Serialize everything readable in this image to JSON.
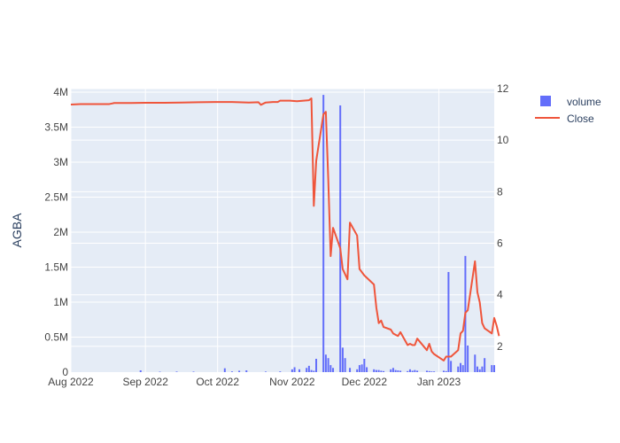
{
  "chart_data": {
    "type": "bar+line",
    "ylabel": "AGBA",
    "x_ticks": [
      "Aug 2022",
      "Sep 2022",
      "Oct 2022",
      "Nov 2022",
      "Dec 2022",
      "Jan 2023"
    ],
    "x_range": [
      "2022-08-01",
      "2023-01-24"
    ],
    "y_left": {
      "range": [
        0,
        4050000
      ],
      "ticks": [
        0,
        500000,
        1000000,
        1500000,
        2000000,
        2500000,
        3000000,
        3500000,
        4000000
      ],
      "tick_labels": [
        "0",
        "0.5M",
        "1M",
        "1.5M",
        "2M",
        "2.5M",
        "3M",
        "3.5M",
        "4M"
      ]
    },
    "y_right": {
      "range": [
        1.0,
        12.0
      ],
      "ticks": [
        2,
        4,
        6,
        8,
        10,
        12
      ],
      "tick_labels": [
        "2",
        "4",
        "6",
        "8",
        "10",
        "12"
      ]
    },
    "grid": true,
    "legend": "top-right",
    "colors": {
      "plot_bg": "#e5ecf6",
      "grid": "#ffffff",
      "bar": "#636efa",
      "line": "#ef553b",
      "text": "#2a3f5f",
      "axis_text": "#444444"
    },
    "series": [
      {
        "name": "volume",
        "type": "bar",
        "axis": "left",
        "points": [
          [
            "2022-08-30",
            25000
          ],
          [
            "2022-09-07",
            6000
          ],
          [
            "2022-09-14",
            8000
          ],
          [
            "2022-09-21",
            7000
          ],
          [
            "2022-10-04",
            55000
          ],
          [
            "2022-10-07",
            10000
          ],
          [
            "2022-10-10",
            20000
          ],
          [
            "2022-10-13",
            25000
          ],
          [
            "2022-10-21",
            8000
          ],
          [
            "2022-10-27",
            10000
          ],
          [
            "2022-11-01",
            40000
          ],
          [
            "2022-11-02",
            70000
          ],
          [
            "2022-11-04",
            40000
          ],
          [
            "2022-11-07",
            60000
          ],
          [
            "2022-11-08",
            90000
          ],
          [
            "2022-11-09",
            30000
          ],
          [
            "2022-11-10",
            20000
          ],
          [
            "2022-11-11",
            190000
          ],
          [
            "2022-11-14",
            3960000
          ],
          [
            "2022-11-15",
            250000
          ],
          [
            "2022-11-16",
            200000
          ],
          [
            "2022-11-17",
            100000
          ],
          [
            "2022-11-18",
            60000
          ],
          [
            "2022-11-21",
            3810000
          ],
          [
            "2022-11-22",
            350000
          ],
          [
            "2022-11-23",
            200000
          ],
          [
            "2022-11-25",
            60000
          ],
          [
            "2022-11-28",
            40000
          ],
          [
            "2022-11-29",
            100000
          ],
          [
            "2022-11-30",
            110000
          ],
          [
            "2022-12-01",
            190000
          ],
          [
            "2022-12-02",
            70000
          ],
          [
            "2022-12-05",
            40000
          ],
          [
            "2022-12-06",
            30000
          ],
          [
            "2022-12-07",
            30000
          ],
          [
            "2022-12-08",
            20000
          ],
          [
            "2022-12-09",
            15000
          ],
          [
            "2022-12-12",
            40000
          ],
          [
            "2022-12-13",
            60000
          ],
          [
            "2022-12-14",
            30000
          ],
          [
            "2022-12-15",
            25000
          ],
          [
            "2022-12-16",
            20000
          ],
          [
            "2022-12-19",
            15000
          ],
          [
            "2022-12-20",
            40000
          ],
          [
            "2022-12-21",
            20000
          ],
          [
            "2022-12-22",
            30000
          ],
          [
            "2022-12-23",
            20000
          ],
          [
            "2022-12-27",
            20000
          ],
          [
            "2022-12-28",
            15000
          ],
          [
            "2022-12-29",
            10000
          ],
          [
            "2022-12-30",
            10000
          ],
          [
            "2023-01-03",
            20000
          ],
          [
            "2023-01-04",
            15000
          ],
          [
            "2023-01-05",
            1430000
          ],
          [
            "2023-01-06",
            160000
          ],
          [
            "2023-01-09",
            80000
          ],
          [
            "2023-01-10",
            130000
          ],
          [
            "2023-01-11",
            100000
          ],
          [
            "2023-01-12",
            1660000
          ],
          [
            "2023-01-13",
            380000
          ],
          [
            "2023-01-16",
            250000
          ],
          [
            "2023-01-17",
            80000
          ],
          [
            "2023-01-18",
            40000
          ],
          [
            "2023-01-19",
            80000
          ],
          [
            "2023-01-20",
            200000
          ],
          [
            "2023-01-23",
            100000
          ],
          [
            "2023-01-24",
            100000
          ]
        ]
      },
      {
        "name": "Close",
        "type": "line",
        "axis": "right",
        "points": [
          [
            "2022-08-01",
            11.38
          ],
          [
            "2022-08-05",
            11.4
          ],
          [
            "2022-08-12",
            11.4
          ],
          [
            "2022-08-17",
            11.4
          ],
          [
            "2022-08-19",
            11.44
          ],
          [
            "2022-08-26",
            11.44
          ],
          [
            "2022-09-01",
            11.45
          ],
          [
            "2022-09-09",
            11.45
          ],
          [
            "2022-09-16",
            11.46
          ],
          [
            "2022-09-23",
            11.47
          ],
          [
            "2022-09-30",
            11.48
          ],
          [
            "2022-10-07",
            11.48
          ],
          [
            "2022-10-14",
            11.46
          ],
          [
            "2022-10-18",
            11.47
          ],
          [
            "2022-10-19",
            11.37
          ],
          [
            "2022-10-21",
            11.46
          ],
          [
            "2022-10-24",
            11.48
          ],
          [
            "2022-10-26",
            11.48
          ],
          [
            "2022-10-27",
            11.53
          ],
          [
            "2022-10-31",
            11.53
          ],
          [
            "2022-11-03",
            11.51
          ],
          [
            "2022-11-08",
            11.55
          ],
          [
            "2022-11-09",
            11.62
          ],
          [
            "2022-11-10",
            7.45
          ],
          [
            "2022-11-11",
            9.2
          ],
          [
            "2022-11-14",
            11.0
          ],
          [
            "2022-11-15",
            11.1
          ],
          [
            "2022-11-16",
            8.5
          ],
          [
            "2022-11-17",
            5.5
          ],
          [
            "2022-11-18",
            6.6
          ],
          [
            "2022-11-21",
            5.8
          ],
          [
            "2022-11-22",
            5.0
          ],
          [
            "2022-11-23",
            4.8
          ],
          [
            "2022-11-24",
            4.6
          ],
          [
            "2022-11-25",
            6.8
          ],
          [
            "2022-11-28",
            6.3
          ],
          [
            "2022-11-29",
            5.0
          ],
          [
            "2022-12-01",
            4.75
          ],
          [
            "2022-12-05",
            4.4
          ],
          [
            "2022-12-06",
            3.5
          ],
          [
            "2022-12-07",
            2.9
          ],
          [
            "2022-12-08",
            3.0
          ],
          [
            "2022-12-09",
            2.75
          ],
          [
            "2022-12-12",
            2.65
          ],
          [
            "2022-12-13",
            2.5
          ],
          [
            "2022-12-14",
            2.45
          ],
          [
            "2022-12-15",
            2.4
          ],
          [
            "2022-12-16",
            2.55
          ],
          [
            "2022-12-19",
            2.05
          ],
          [
            "2022-12-20",
            2.1
          ],
          [
            "2022-12-21",
            2.05
          ],
          [
            "2022-12-22",
            2.05
          ],
          [
            "2022-12-23",
            2.3
          ],
          [
            "2022-12-27",
            1.85
          ],
          [
            "2022-12-28",
            2.1
          ],
          [
            "2022-12-29",
            1.8
          ],
          [
            "2022-12-30",
            1.7
          ],
          [
            "2023-01-03",
            1.45
          ],
          [
            "2023-01-04",
            1.6
          ],
          [
            "2023-01-05",
            1.6
          ],
          [
            "2023-01-06",
            1.6
          ],
          [
            "2023-01-09",
            1.85
          ],
          [
            "2023-01-10",
            2.5
          ],
          [
            "2023-01-11",
            2.6
          ],
          [
            "2023-01-12",
            3.3
          ],
          [
            "2023-01-13",
            3.4
          ],
          [
            "2023-01-16",
            5.3
          ],
          [
            "2023-01-17",
            4.1
          ],
          [
            "2023-01-18",
            3.7
          ],
          [
            "2023-01-19",
            2.9
          ],
          [
            "2023-01-20",
            2.7
          ],
          [
            "2023-01-23",
            2.5
          ],
          [
            "2023-01-24",
            3.1
          ],
          [
            "2023-01-25",
            2.8
          ],
          [
            "2023-01-26",
            2.4
          ]
        ]
      }
    ]
  }
}
